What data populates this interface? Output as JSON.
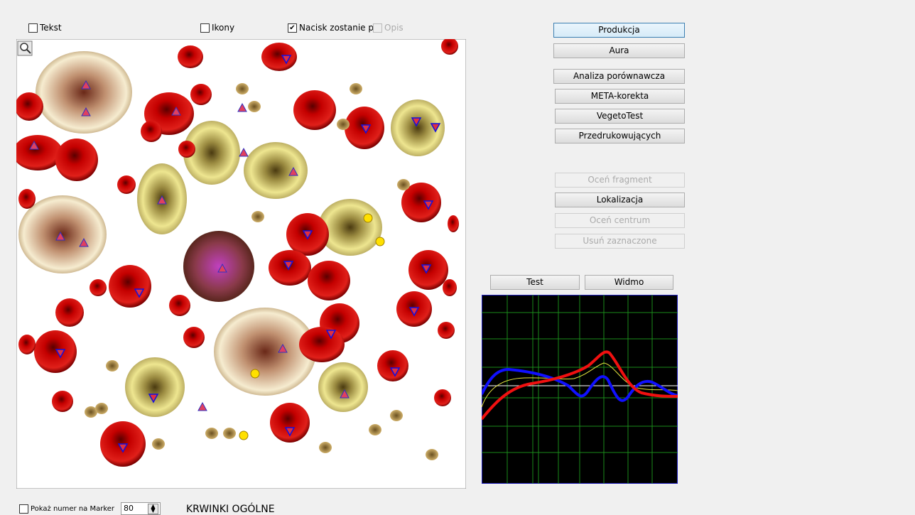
{
  "toolbar": {
    "checkboxes": [
      {
        "label": "Tekst",
        "checked": false,
        "disabled": false
      },
      {
        "label": "Ikony",
        "checked": false,
        "disabled": false
      },
      {
        "label": "Nacisk zostanie p",
        "checked": true,
        "disabled": false
      },
      {
        "label": "Opis",
        "checked": false,
        "disabled": true
      }
    ]
  },
  "buttons": [
    {
      "label": "Produkcja",
      "disabled": false
    },
    {
      "label": "Aura",
      "disabled": false
    },
    {
      "label": "Analiza porównawcza",
      "disabled": false
    },
    {
      "label": "META-korekta",
      "disabled": false
    },
    {
      "label": "VegetoTest",
      "disabled": false
    },
    {
      "label": "Przedrukowujących",
      "disabled": false
    },
    {
      "label": "Oceń fragment",
      "disabled": true
    },
    {
      "label": "Lokalizacja",
      "disabled": false
    },
    {
      "label": "Oceń centrum",
      "disabled": true
    },
    {
      "label": "Usuń zaznaczone",
      "disabled": true
    }
  ],
  "graph_buttons": [
    "Test",
    "Widmo"
  ],
  "footer": {
    "checkbox": "Pokaż numer na Marker",
    "spin_value": "80",
    "caption": "KRWINKI OGÓLNE"
  }
}
